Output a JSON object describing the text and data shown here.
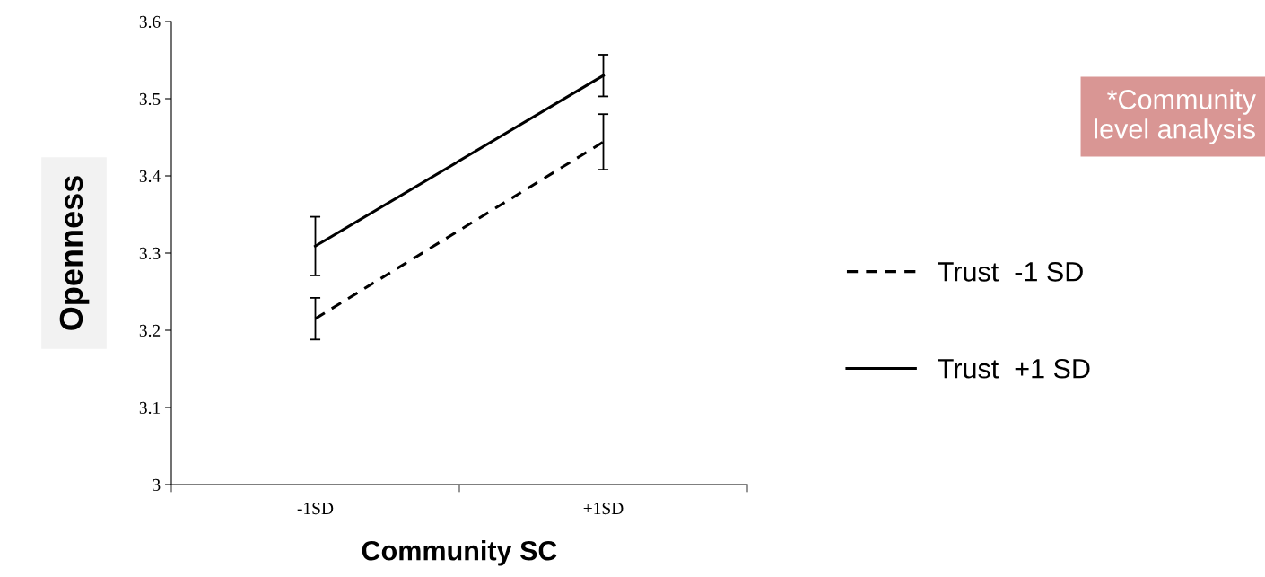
{
  "chart_data": {
    "type": "line",
    "xlabel": "Community SC",
    "ylabel": "Openness",
    "categories": [
      "-1SD",
      "+1SD"
    ],
    "series": [
      {
        "name": "Trust  -1 SD",
        "color": "#000000",
        "line_style": "dashed",
        "values": [
          3.215,
          3.444
        ],
        "errors": [
          0.027,
          0.036
        ]
      },
      {
        "name": "Trust  +1 SD",
        "color": "#000000",
        "line_style": "solid",
        "values": [
          3.309,
          3.53
        ],
        "errors": [
          0.038,
          0.027
        ]
      }
    ],
    "ylim": [
      3,
      3.6
    ],
    "yticks": [
      {
        "value": 3,
        "label": "3"
      },
      3.1,
      3.2,
      3.3,
      3.4,
      3.5,
      3.6
    ],
    "grid": false,
    "legend": "right",
    "marker": "none",
    "annotations": [
      "*Community\nlevel analysis"
    ]
  }
}
